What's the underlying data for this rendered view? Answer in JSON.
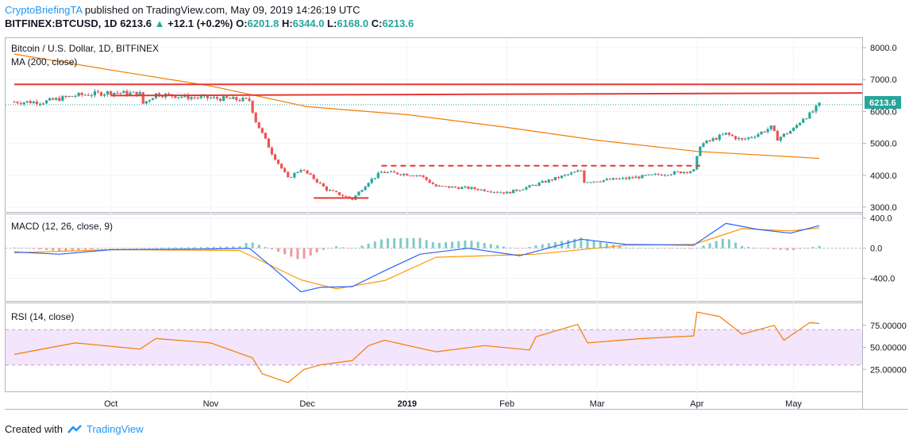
{
  "header": {
    "author": "CryptoBriefingTA",
    "published_text": "published on TradingView.com, May 09, 2019 14:26:19 UTC",
    "symbol": "BITFINEX:BTCUSD, 1D",
    "last": "6213.6",
    "change": "+12.1 (+0.2%)",
    "open_label": "O:",
    "open": "6201.8",
    "high_label": "H:",
    "high": "6344.0",
    "low_label": "L:",
    "low": "6168.0",
    "close_label": "C:",
    "close": "6213.6"
  },
  "footer": {
    "created_with": "Created with",
    "brand": "TradingView"
  },
  "colors": {
    "up": "#26a69a",
    "down": "#ef5350",
    "ma": "#f57c00",
    "resistance": "#e53935",
    "macd_line": "#2962ff",
    "signal_line": "#ff9800",
    "rsi_line": "#f57c00",
    "rsi_band": "#f3e5fb",
    "brand": "#2196f3"
  },
  "chart_data": [
    {
      "type": "candlestick",
      "title": "Bitcoin / U.S. Dollar, 1D, BITFINEX",
      "overlay_label": "MA (200, close)",
      "y_ticks": [
        8000.0,
        7000.0,
        6000.0,
        5000.0,
        4000.0,
        3000.0
      ],
      "ylim": [
        2850,
        8300
      ],
      "last_price_label": "6213.6",
      "x_labels": [
        "Oct",
        "Nov",
        "Dec",
        "2019",
        "Feb",
        "Mar",
        "Apr",
        "May"
      ],
      "price_path": [
        [
          "2018-09-10",
          6300
        ],
        [
          "2018-09-20",
          6500
        ],
        [
          "2018-10-01",
          6600
        ],
        [
          "2018-10-10",
          6550
        ],
        [
          "2018-10-11",
          6250
        ],
        [
          "2018-10-15",
          6550
        ],
        [
          "2018-10-25",
          6450
        ],
        [
          "2018-11-05",
          6400
        ],
        [
          "2018-11-13",
          6350
        ],
        [
          "2018-11-15",
          5700
        ],
        [
          "2018-11-20",
          4700
        ],
        [
          "2018-11-25",
          3900
        ],
        [
          "2018-11-29",
          4200
        ],
        [
          "2018-12-03",
          3900
        ],
        [
          "2018-12-07",
          3550
        ],
        [
          "2018-12-15",
          3250
        ],
        [
          "2018-12-20",
          3800
        ],
        [
          "2018-12-24",
          4100
        ],
        [
          "2019-01-05",
          4000
        ],
        [
          "2019-01-10",
          3650
        ],
        [
          "2019-01-20",
          3600
        ],
        [
          "2019-02-01",
          3450
        ],
        [
          "2019-02-08",
          3650
        ],
        [
          "2019-02-24",
          4150
        ],
        [
          "2019-02-25",
          3800
        ],
        [
          "2019-03-10",
          3900
        ],
        [
          "2019-03-31",
          4150
        ],
        [
          "2019-04-02",
          4950
        ],
        [
          "2019-04-10",
          5300
        ],
        [
          "2019-04-15",
          5100
        ],
        [
          "2019-04-20",
          5300
        ],
        [
          "2019-04-24",
          5500
        ],
        [
          "2019-04-26",
          5150
        ],
        [
          "2019-05-01",
          5450
        ],
        [
          "2019-05-04",
          5800
        ],
        [
          "2019-05-06",
          5900
        ],
        [
          "2019-05-09",
          6213.6
        ]
      ],
      "ma_path": [
        [
          "2018-09-01",
          7800
        ],
        [
          "2018-10-01",
          7300
        ],
        [
          "2018-11-01",
          6800
        ],
        [
          "2018-12-01",
          6150
        ],
        [
          "2019-01-01",
          5900
        ],
        [
          "2019-02-01",
          5500
        ],
        [
          "2019-03-01",
          5100
        ],
        [
          "2019-04-01",
          4750
        ],
        [
          "2019-05-09",
          4530
        ]
      ],
      "resistance_lines": [
        {
          "from": [
            "2018-09-01",
            6850
          ],
          "to": [
            "2019-05-31",
            6850
          ]
        },
        {
          "from": [
            "2018-10-01",
            6500
          ],
          "to": [
            "2019-05-31",
            6580
          ]
        }
      ],
      "support_line": {
        "from": [
          "2018-12-03",
          3290
        ],
        "to": [
          "2018-12-20",
          3290
        ]
      },
      "dashed_range_line": {
        "from": [
          "2018-12-24",
          4300
        ],
        "to": [
          "2019-04-02",
          4300
        ]
      }
    },
    {
      "type": "line",
      "title": "MACD (12, 26, close, 9)",
      "y_ticks": [
        400.0,
        0.0,
        -400.0
      ],
      "ylim": [
        -700,
        450
      ],
      "macd_path": [
        [
          "2018-09-01",
          -50
        ],
        [
          "2018-09-15",
          -80
        ],
        [
          "2018-10-01",
          -20
        ],
        [
          "2018-11-01",
          -10
        ],
        [
          "2018-11-13",
          0
        ],
        [
          "2018-11-20",
          -250
        ],
        [
          "2018-11-29",
          -580
        ],
        [
          "2018-12-05",
          -520
        ],
        [
          "2018-12-15",
          -510
        ],
        [
          "2018-12-25",
          -300
        ],
        [
          "2019-01-05",
          -80
        ],
        [
          "2019-01-20",
          0
        ],
        [
          "2019-02-05",
          -100
        ],
        [
          "2019-02-24",
          120
        ],
        [
          "2019-03-10",
          50
        ],
        [
          "2019-03-31",
          40
        ],
        [
          "2019-04-10",
          330
        ],
        [
          "2019-04-20",
          250
        ],
        [
          "2019-04-30",
          200
        ],
        [
          "2019-05-09",
          300
        ]
      ],
      "signal_path": [
        [
          "2018-09-01",
          -60
        ],
        [
          "2018-10-01",
          -20
        ],
        [
          "2018-11-10",
          -30
        ],
        [
          "2018-11-29",
          -420
        ],
        [
          "2018-12-10",
          -540
        ],
        [
          "2018-12-25",
          -430
        ],
        [
          "2019-01-10",
          -120
        ],
        [
          "2019-02-10",
          -80
        ],
        [
          "2019-03-10",
          40
        ],
        [
          "2019-03-31",
          50
        ],
        [
          "2019-04-15",
          260
        ],
        [
          "2019-04-30",
          230
        ],
        [
          "2019-05-09",
          270
        ]
      ]
    },
    {
      "type": "line",
      "title": "RSI (14, close)",
      "y_ticks": [
        75.0,
        50.0,
        25.0
      ],
      "ylim": [
        0,
        100
      ],
      "band": [
        30,
        70
      ],
      "rsi_path": [
        [
          "2018-09-01",
          42
        ],
        [
          "2018-09-20",
          55
        ],
        [
          "2018-10-10",
          48
        ],
        [
          "2018-10-15",
          60
        ],
        [
          "2018-11-01",
          55
        ],
        [
          "2018-11-14",
          38
        ],
        [
          "2018-11-17",
          20
        ],
        [
          "2018-11-25",
          10
        ],
        [
          "2018-11-30",
          25
        ],
        [
          "2018-12-05",
          30
        ],
        [
          "2018-12-15",
          35
        ],
        [
          "2018-12-20",
          52
        ],
        [
          "2018-12-25",
          58
        ],
        [
          "2019-01-10",
          45
        ],
        [
          "2019-01-25",
          52
        ],
        [
          "2019-02-08",
          47
        ],
        [
          "2019-02-10",
          62
        ],
        [
          "2019-02-23",
          76
        ],
        [
          "2019-02-26",
          55
        ],
        [
          "2019-03-15",
          60
        ],
        [
          "2019-03-31",
          63
        ],
        [
          "2019-04-01",
          90
        ],
        [
          "2019-04-08",
          85
        ],
        [
          "2019-04-15",
          65
        ],
        [
          "2019-04-25",
          75
        ],
        [
          "2019-04-28",
          58
        ],
        [
          "2019-05-06",
          78
        ],
        [
          "2019-05-09",
          77
        ]
      ]
    }
  ]
}
